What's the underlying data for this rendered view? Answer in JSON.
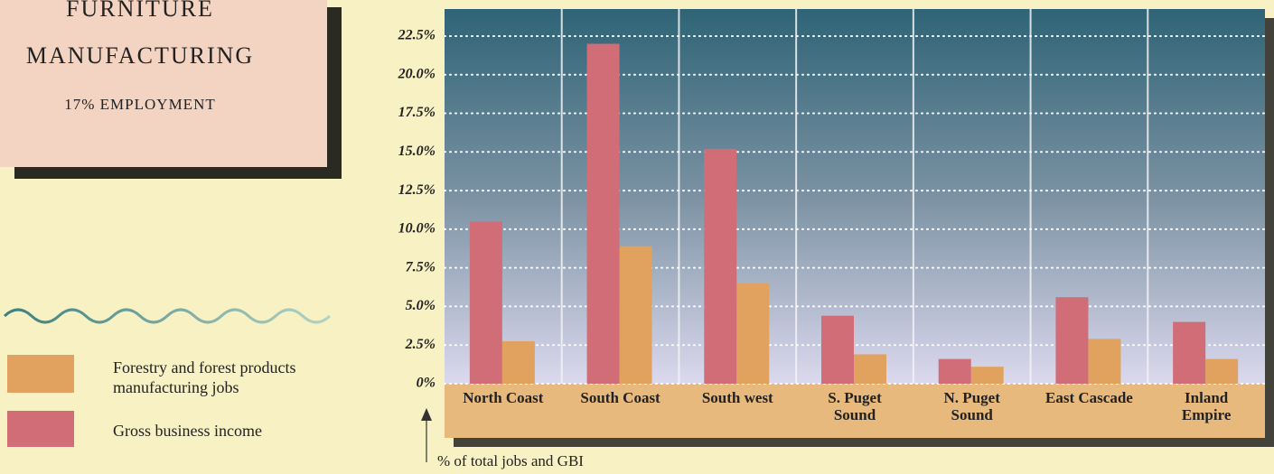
{
  "chart_data": {
    "type": "bar",
    "annotations": [
      "FURNITURE",
      "MANUFACTURING",
      "17% EMPLOYMENT"
    ],
    "y_label": "% of total jobs and GBI",
    "categories": [
      "North Coast",
      "South Coast",
      "South west",
      "S. Puget Sound",
      "N. Puget Sound",
      "East Cascade",
      "Inland Empire"
    ],
    "series": [
      {
        "name": "Forestry and forest products manufacturing jobs",
        "color": "#e0a25e",
        "values": [
          2.75,
          8.9,
          6.5,
          1.9,
          1.1,
          2.9,
          1.6
        ]
      },
      {
        "name": "Gross business income",
        "color": "#d16d77",
        "values": [
          10.5,
          22.0,
          15.2,
          4.4,
          1.6,
          5.6,
          4.0
        ]
      }
    ],
    "ylim": [
      0,
      24.25
    ],
    "yticks": [
      {
        "value": 0,
        "label": "0%"
      },
      {
        "value": 2.5,
        "label": "2.5%"
      },
      {
        "value": 5,
        "label": "5.0%"
      },
      {
        "value": 7.5,
        "label": "7.5%"
      },
      {
        "value": 10,
        "label": "10.0%"
      },
      {
        "value": 12.5,
        "label": "12.5%"
      },
      {
        "value": 15,
        "label": "15.0%"
      },
      {
        "value": 17.5,
        "label": "17.5%"
      },
      {
        "value": 20,
        "label": "20.0%"
      },
      {
        "value": 22.5,
        "label": "22.5%"
      }
    ],
    "grid": true
  }
}
